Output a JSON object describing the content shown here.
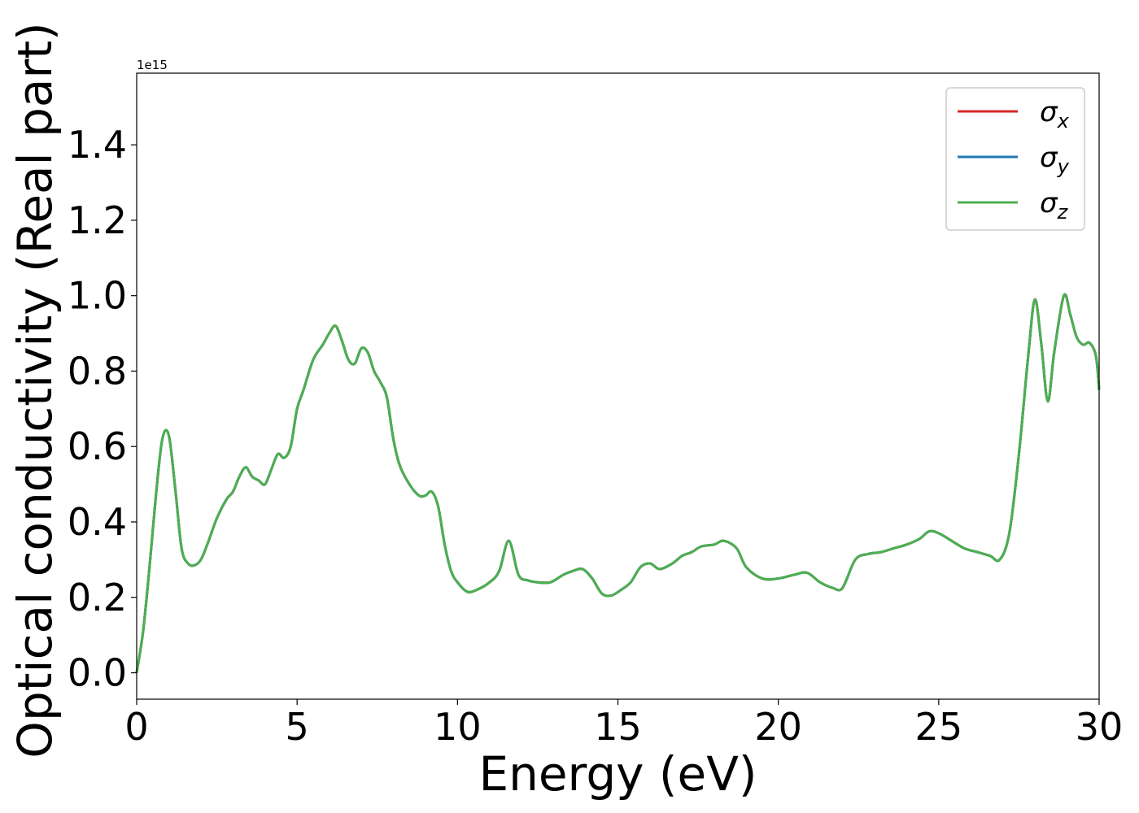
{
  "chart_data": {
    "type": "line",
    "xlabel": "Energy (eV)",
    "ylabel": "Optical conductivity (Real part)",
    "y_offset_text": "1e15",
    "xlim": [
      0,
      30
    ],
    "ylim": [
      -0.07,
      1.59
    ],
    "y_scale_factor": 1000000000000000.0,
    "x_ticks": [
      0,
      5,
      10,
      15,
      20,
      25,
      30
    ],
    "x_tick_labels": [
      "0",
      "5",
      "10",
      "15",
      "20",
      "25",
      "30"
    ],
    "y_ticks": [
      0.0,
      0.2,
      0.4,
      0.6,
      0.8,
      1.0,
      1.2,
      1.4
    ],
    "y_tick_labels": [
      "0.0",
      "0.2",
      "0.4",
      "0.6",
      "0.8",
      "1.0",
      "1.2",
      "1.4"
    ],
    "grid": false,
    "legend": {
      "placement": "top-right",
      "entries": [
        {
          "base": "σ",
          "sub": "x",
          "color": "#d62728"
        },
        {
          "base": "σ",
          "sub": "y",
          "color": "#1f77b4"
        },
        {
          "base": "σ",
          "sub": "z",
          "color": "#4caf50"
        }
      ]
    },
    "x": [
      0,
      0.2,
      0.4,
      0.6,
      0.8,
      1.0,
      1.2,
      1.4,
      1.6,
      1.8,
      2.0,
      2.2,
      2.5,
      2.8,
      3.0,
      3.2,
      3.4,
      3.6,
      3.8,
      4.0,
      4.2,
      4.4,
      4.6,
      4.8,
      5.0,
      5.2,
      5.5,
      5.8,
      6.0,
      6.2,
      6.4,
      6.6,
      6.8,
      7.0,
      7.2,
      7.4,
      7.6,
      7.8,
      8.0,
      8.2,
      8.5,
      8.8,
      9.0,
      9.2,
      9.4,
      9.6,
      9.8,
      10.0,
      10.3,
      10.6,
      11.0,
      11.3,
      11.6,
      11.9,
      12.2,
      12.5,
      12.9,
      13.3,
      13.6,
      13.9,
      14.2,
      14.5,
      14.8,
      15.1,
      15.4,
      15.7,
      16.0,
      16.3,
      16.7,
      17.0,
      17.3,
      17.6,
      18.0,
      18.3,
      18.7,
      19.0,
      19.5,
      20.0,
      20.5,
      20.9,
      21.3,
      21.7,
      22.0,
      22.4,
      22.8,
      23.2,
      23.6,
      24.0,
      24.4,
      24.7,
      25.0,
      25.4,
      25.8,
      26.2,
      26.6,
      26.9,
      27.2,
      27.5,
      27.8,
      28.0,
      28.2,
      28.4,
      28.6,
      28.9,
      29.1,
      29.3,
      29.5,
      29.7,
      29.9,
      30.0
    ],
    "series": [
      {
        "color": "#d62728",
        "values": [
          0.0,
          0.11,
          0.28,
          0.47,
          0.62,
          0.63,
          0.49,
          0.33,
          0.29,
          0.285,
          0.3,
          0.34,
          0.41,
          0.46,
          0.48,
          0.52,
          0.545,
          0.52,
          0.51,
          0.5,
          0.54,
          0.58,
          0.57,
          0.6,
          0.7,
          0.75,
          0.83,
          0.87,
          0.9,
          0.92,
          0.88,
          0.83,
          0.82,
          0.86,
          0.85,
          0.8,
          0.77,
          0.73,
          0.62,
          0.55,
          0.5,
          0.47,
          0.47,
          0.48,
          0.44,
          0.34,
          0.27,
          0.24,
          0.215,
          0.22,
          0.24,
          0.27,
          0.35,
          0.26,
          0.245,
          0.24,
          0.24,
          0.26,
          0.27,
          0.275,
          0.25,
          0.21,
          0.205,
          0.22,
          0.24,
          0.28,
          0.29,
          0.275,
          0.29,
          0.31,
          0.32,
          0.335,
          0.34,
          0.35,
          0.33,
          0.28,
          0.25,
          0.25,
          0.26,
          0.265,
          0.24,
          0.225,
          0.225,
          0.3,
          0.315,
          0.32,
          0.33,
          0.34,
          0.355,
          0.375,
          0.37,
          0.35,
          0.33,
          0.32,
          0.31,
          0.3,
          0.37,
          0.58,
          0.85,
          0.99,
          0.87,
          0.72,
          0.85,
          1.0,
          0.95,
          0.89,
          0.87,
          0.875,
          0.84,
          0.75
        ]
      },
      {
        "color": "#1f77b4",
        "values": [
          0.0,
          0.11,
          0.28,
          0.47,
          0.62,
          0.63,
          0.49,
          0.33,
          0.29,
          0.285,
          0.3,
          0.34,
          0.41,
          0.46,
          0.48,
          0.52,
          0.545,
          0.52,
          0.51,
          0.5,
          0.54,
          0.58,
          0.57,
          0.6,
          0.7,
          0.75,
          0.83,
          0.87,
          0.9,
          0.92,
          0.88,
          0.83,
          0.82,
          0.86,
          0.85,
          0.8,
          0.77,
          0.73,
          0.62,
          0.55,
          0.5,
          0.47,
          0.47,
          0.48,
          0.44,
          0.34,
          0.27,
          0.24,
          0.215,
          0.22,
          0.24,
          0.27,
          0.35,
          0.26,
          0.245,
          0.24,
          0.24,
          0.26,
          0.27,
          0.275,
          0.25,
          0.21,
          0.205,
          0.22,
          0.24,
          0.28,
          0.29,
          0.275,
          0.29,
          0.31,
          0.32,
          0.335,
          0.34,
          0.35,
          0.33,
          0.28,
          0.25,
          0.25,
          0.26,
          0.265,
          0.24,
          0.225,
          0.225,
          0.3,
          0.315,
          0.32,
          0.33,
          0.34,
          0.355,
          0.375,
          0.37,
          0.35,
          0.33,
          0.32,
          0.31,
          0.3,
          0.37,
          0.58,
          0.85,
          0.99,
          0.87,
          0.72,
          0.85,
          1.0,
          0.95,
          0.89,
          0.87,
          0.875,
          0.84,
          0.75
        ]
      },
      {
        "color": "#4caf50",
        "values": [
          0.0,
          0.11,
          0.28,
          0.47,
          0.62,
          0.63,
          0.49,
          0.33,
          0.29,
          0.285,
          0.3,
          0.34,
          0.41,
          0.46,
          0.48,
          0.52,
          0.545,
          0.52,
          0.51,
          0.5,
          0.54,
          0.58,
          0.57,
          0.6,
          0.7,
          0.75,
          0.83,
          0.87,
          0.9,
          0.92,
          0.88,
          0.83,
          0.82,
          0.86,
          0.85,
          0.8,
          0.77,
          0.73,
          0.62,
          0.55,
          0.5,
          0.47,
          0.47,
          0.48,
          0.44,
          0.34,
          0.27,
          0.24,
          0.215,
          0.22,
          0.24,
          0.27,
          0.35,
          0.26,
          0.245,
          0.24,
          0.24,
          0.26,
          0.27,
          0.275,
          0.25,
          0.21,
          0.205,
          0.22,
          0.24,
          0.28,
          0.29,
          0.275,
          0.29,
          0.31,
          0.32,
          0.335,
          0.34,
          0.35,
          0.33,
          0.28,
          0.25,
          0.25,
          0.26,
          0.265,
          0.24,
          0.225,
          0.225,
          0.3,
          0.315,
          0.32,
          0.33,
          0.34,
          0.355,
          0.375,
          0.37,
          0.35,
          0.33,
          0.32,
          0.31,
          0.3,
          0.37,
          0.58,
          0.85,
          0.99,
          0.87,
          0.72,
          0.85,
          1.0,
          0.95,
          0.89,
          0.87,
          0.875,
          0.84,
          0.75
        ]
      }
    ]
  }
}
